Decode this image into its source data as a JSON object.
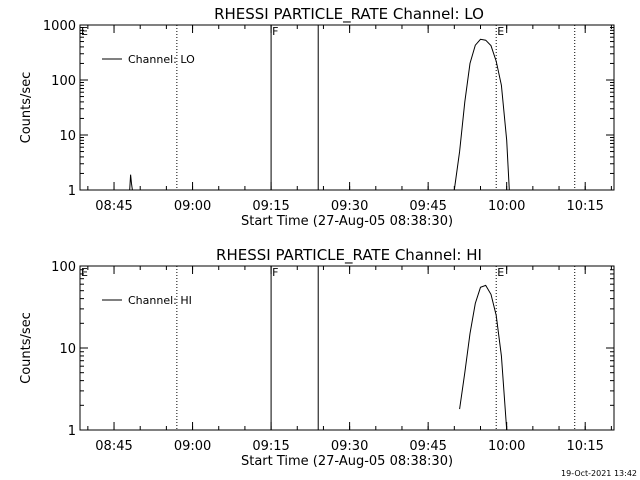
{
  "timestamp": "19-Oct-2021 13:42",
  "chart_data": [
    {
      "type": "line",
      "title": "RHESSI PARTICLE_RATE Channel: LO",
      "xlabel": "Start Time (27-Aug-05 08:38:30)",
      "ylabel": "Counts/sec",
      "legend_position": "upper-left",
      "yscale": "log",
      "xlim": [
        "08:38:30",
        "10:20:30"
      ],
      "ylim": [
        1,
        1000
      ],
      "x_ticks": [
        "08:45",
        "09:00",
        "09:15",
        "09:30",
        "09:45",
        "10:00",
        "10:15"
      ],
      "y_ticks": [
        "1",
        "10",
        "100",
        "1000"
      ],
      "series": [
        {
          "name": "Channel: LO",
          "x": [
            "08:48:00",
            "08:48:10",
            "08:48:20",
            "08:48:30",
            "08:48:40"
          ],
          "y": [
            1,
            1.9,
            1.3,
            1,
            1
          ]
        },
        {
          "name": "Channel: LO",
          "x": [
            "09:50:00",
            "09:51:00",
            "09:52:00",
            "09:53:00",
            "09:54:00",
            "09:55:00",
            "09:56:00",
            "09:57:00",
            "09:58:00",
            "09:59:00",
            "10:00:00",
            "10:00:30"
          ],
          "y": [
            1,
            5,
            40,
            200,
            430,
            550,
            530,
            420,
            220,
            80,
            8,
            1
          ]
        }
      ],
      "vertical_lines": [
        {
          "time": "09:15:00",
          "style": "solid",
          "label": "F"
        },
        {
          "time": "09:24:00",
          "style": "solid",
          "label": ""
        },
        {
          "time": "08:57:00",
          "style": "dotted",
          "label": ""
        },
        {
          "time": "09:58:00",
          "style": "dotted",
          "label": "E"
        },
        {
          "time": "10:13:00",
          "style": "dotted",
          "label": ""
        }
      ],
      "corner_label": "E"
    },
    {
      "type": "line",
      "title": "RHESSI PARTICLE_RATE Channel: HI",
      "xlabel": "Start Time (27-Aug-05 08:38:30)",
      "ylabel": "Counts/sec",
      "legend_position": "upper-left",
      "yscale": "log",
      "xlim": [
        "08:38:30",
        "10:20:30"
      ],
      "ylim": [
        1,
        100
      ],
      "x_ticks": [
        "08:45",
        "09:00",
        "09:15",
        "09:30",
        "09:45",
        "10:00",
        "10:15"
      ],
      "y_ticks": [
        "1",
        "10",
        "100"
      ],
      "series": [
        {
          "name": "Channel: HI",
          "x": [
            "09:51:00",
            "09:52:00",
            "09:53:00",
            "09:54:00",
            "09:55:00",
            "09:56:00",
            "09:57:00",
            "09:58:00",
            "09:59:00",
            "10:00:00"
          ],
          "y": [
            1.8,
            5,
            15,
            35,
            55,
            58,
            45,
            25,
            8,
            1
          ]
        }
      ],
      "vertical_lines": [
        {
          "time": "09:15:00",
          "style": "solid",
          "label": "F"
        },
        {
          "time": "09:24:00",
          "style": "solid",
          "label": ""
        },
        {
          "time": "08:57:00",
          "style": "dotted",
          "label": ""
        },
        {
          "time": "09:58:00",
          "style": "dotted",
          "label": "E"
        },
        {
          "time": "10:13:00",
          "style": "dotted",
          "label": ""
        }
      ],
      "corner_label": "E"
    }
  ]
}
